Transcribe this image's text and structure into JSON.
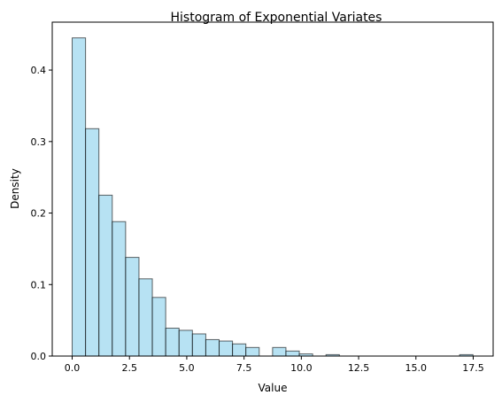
{
  "chart_data": {
    "type": "bar",
    "subtype": "histogram",
    "title": "Histogram of Exponential Variates",
    "xlabel": "Value",
    "ylabel": "Density",
    "xlim": [
      -0.87,
      18.37
    ],
    "ylim": [
      0,
      0.467
    ],
    "xticks": [
      0.0,
      2.5,
      5.0,
      7.5,
      10.0,
      12.5,
      15.0,
      17.5
    ],
    "xtick_labels": [
      "0.0",
      "2.5",
      "5.0",
      "7.5",
      "10.0",
      "12.5",
      "15.0",
      "17.5"
    ],
    "yticks": [
      0.0,
      0.1,
      0.2,
      0.3,
      0.4
    ],
    "ytick_labels": [
      "0.0",
      "0.1",
      "0.2",
      "0.3",
      "0.4"
    ],
    "grid": false,
    "legend": "none",
    "bin_start": 0.0,
    "bin_width": 0.583,
    "values": [
      0.445,
      0.318,
      0.225,
      0.188,
      0.138,
      0.108,
      0.082,
      0.039,
      0.036,
      0.031,
      0.023,
      0.021,
      0.017,
      0.012,
      0.0,
      0.012,
      0.007,
      0.003,
      0.0,
      0.002,
      0.0,
      0.0,
      0.0,
      0.0,
      0.0,
      0.0,
      0.0,
      0.0,
      0.0,
      0.002
    ],
    "bar_fill": "#87ceeb",
    "bar_fill_opacity": 0.6,
    "bar_edge": "#000000",
    "bar_edge_opacity": 0.6
  }
}
